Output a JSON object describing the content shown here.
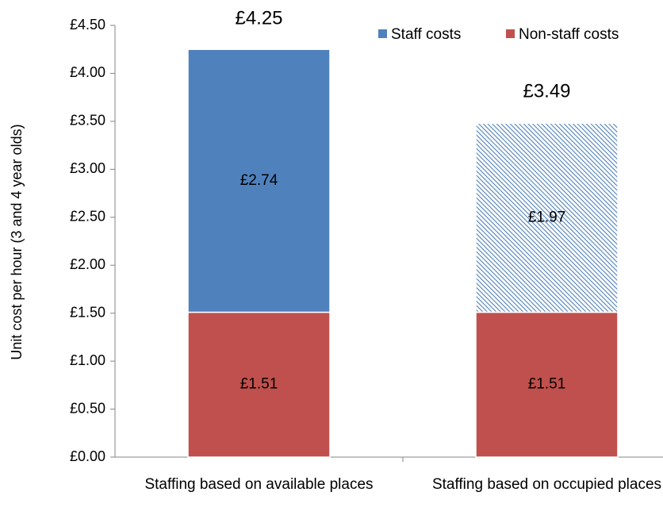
{
  "chart_data": {
    "type": "stacked_bar",
    "y_axis_label": "Unit cost per hour (3 and 4 year olds)",
    "categories": [
      "Staffing based on available places",
      "Staffing based on occupied places"
    ],
    "series": [
      {
        "name": "Staff costs",
        "color": "#4f81bd",
        "values": [
          2.74,
          1.97
        ],
        "value_labels": [
          "£2.74",
          "£1.97"
        ],
        "hatched": [
          false,
          true
        ]
      },
      {
        "name": "Non-staff costs",
        "color": "#c0504d",
        "values": [
          1.51,
          1.51
        ],
        "value_labels": [
          "£1.51",
          "£1.51"
        ],
        "hatched": [
          false,
          false
        ]
      }
    ],
    "totals": [
      4.25,
      3.49
    ],
    "total_labels": [
      "£4.25",
      "£3.49"
    ],
    "ylim": [
      0,
      4.5
    ],
    "yticks": [
      {
        "value": 0,
        "label": "£0.00"
      },
      {
        "value": 0.5,
        "label": "£0.50"
      },
      {
        "value": 1,
        "label": "£1.00"
      },
      {
        "value": 1.5,
        "label": "£1.50"
      },
      {
        "value": 2,
        "label": "£2.00"
      },
      {
        "value": 2.5,
        "label": "£2.50"
      },
      {
        "value": 3,
        "label": "£3.00"
      },
      {
        "value": 3.5,
        "label": "£3.50"
      },
      {
        "value": 4,
        "label": "£4.00"
      },
      {
        "value": 4.5,
        "label": "£4.50"
      }
    ],
    "legend": "top-right"
  }
}
